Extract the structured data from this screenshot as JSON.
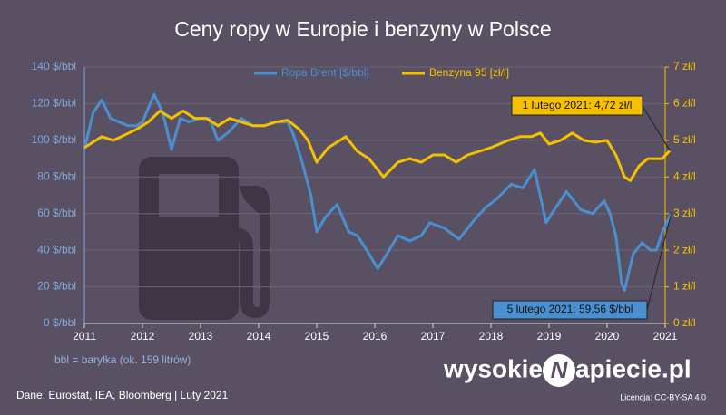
{
  "chart_data": {
    "type": "line",
    "title": "Ceny ropy w Europie i benzyny w Polsce",
    "series": [
      {
        "name": "Ropa Brent [$/bbl]",
        "color": "#4a90d0",
        "axis": "y",
        "x": [
          2011.0,
          2011.15,
          2011.3,
          2011.45,
          2011.6,
          2011.75,
          2011.9,
          2012.0,
          2012.2,
          2012.35,
          2012.5,
          2012.65,
          2012.8,
          2013.0,
          2013.15,
          2013.3,
          2013.5,
          2013.7,
          2013.9,
          2014.1,
          2014.3,
          2014.5,
          2014.6,
          2014.75,
          2014.9,
          2015.0,
          2015.15,
          2015.35,
          2015.55,
          2015.7,
          2015.9,
          2016.05,
          2016.15,
          2016.4,
          2016.6,
          2016.8,
          2016.95,
          2017.2,
          2017.45,
          2017.7,
          2017.9,
          2018.1,
          2018.35,
          2018.55,
          2018.75,
          2018.95,
          2019.05,
          2019.3,
          2019.55,
          2019.75,
          2019.95,
          2020.05,
          2020.15,
          2020.25,
          2020.3,
          2020.45,
          2020.6,
          2020.75,
          2020.85,
          2020.95,
          2021.1
        ],
        "values": [
          95,
          115,
          122,
          112,
          110,
          108,
          108,
          110,
          125,
          115,
          95,
          112,
          110,
          112,
          112,
          100,
          105,
          112,
          108,
          108,
          110,
          110,
          103,
          88,
          70,
          50,
          58,
          65,
          50,
          48,
          38,
          30,
          35,
          48,
          45,
          48,
          55,
          52,
          46,
          56,
          63,
          68,
          76,
          74,
          84,
          55,
          60,
          72,
          62,
          60,
          67,
          60,
          48,
          22,
          18,
          38,
          44,
          40,
          40,
          50,
          59.56
        ]
      },
      {
        "name": "Benzyna 95 [zł/l]",
        "color": "#f5c000",
        "axis": "y2",
        "x": [
          2011.0,
          2011.1,
          2011.3,
          2011.5,
          2011.7,
          2011.9,
          2012.1,
          2012.3,
          2012.5,
          2012.7,
          2012.9,
          2013.1,
          2013.3,
          2013.5,
          2013.7,
          2013.9,
          2014.1,
          2014.3,
          2014.5,
          2014.7,
          2014.85,
          2015.0,
          2015.2,
          2015.4,
          2015.5,
          2015.7,
          2015.9,
          2016.05,
          2016.15,
          2016.4,
          2016.6,
          2016.8,
          2017.0,
          2017.2,
          2017.4,
          2017.6,
          2017.8,
          2018.0,
          2018.3,
          2018.5,
          2018.7,
          2018.85,
          2019.0,
          2019.2,
          2019.4,
          2019.6,
          2019.8,
          2020.0,
          2020.15,
          2020.3,
          2020.4,
          2020.55,
          2020.7,
          2020.85,
          2020.95,
          2021.08
        ],
        "values": [
          4.8,
          4.9,
          5.1,
          5.0,
          5.15,
          5.3,
          5.5,
          5.8,
          5.6,
          5.8,
          5.6,
          5.6,
          5.4,
          5.6,
          5.5,
          5.4,
          5.4,
          5.5,
          5.55,
          5.3,
          5.0,
          4.4,
          4.8,
          5.0,
          5.1,
          4.7,
          4.5,
          4.2,
          4.0,
          4.4,
          4.5,
          4.4,
          4.6,
          4.6,
          4.4,
          4.6,
          4.7,
          4.8,
          5.0,
          5.1,
          5.1,
          5.2,
          4.9,
          5.0,
          5.2,
          5.0,
          4.95,
          5.0,
          4.6,
          4.0,
          3.9,
          4.3,
          4.5,
          4.5,
          4.5,
          4.72
        ]
      }
    ],
    "xlim": [
      2011,
      2021
    ],
    "xticks": [
      2011,
      2012,
      2013,
      2014,
      2015,
      2016,
      2017,
      2018,
      2019,
      2020,
      2021
    ],
    "ylim": [
      0,
      140
    ],
    "yticks": [
      {
        "value": 0,
        "label": "0 $/bbl"
      },
      {
        "value": 20,
        "label": "20 $/bbl"
      },
      {
        "value": 40,
        "label": "40 $/bbl"
      },
      {
        "value": 60,
        "label": "60 $/bbl"
      },
      {
        "value": 80,
        "label": "80 $/bbl"
      },
      {
        "value": 100,
        "label": "100 $/bbl"
      },
      {
        "value": 120,
        "label": "120 $/bbl"
      },
      {
        "value": 140,
        "label": "140 $/bbl"
      }
    ],
    "y2lim": [
      0,
      7
    ],
    "y2ticks": [
      {
        "value": 0,
        "label": "0 zł/l"
      },
      {
        "value": 1,
        "label": "1 zł/l"
      },
      {
        "value": 2,
        "label": "2 zł/l"
      },
      {
        "value": 3,
        "label": "3 zł/l"
      },
      {
        "value": 4,
        "label": "4 zł/l"
      },
      {
        "value": 5,
        "label": "5 zł/l"
      },
      {
        "value": 6,
        "label": "6 zł/l"
      },
      {
        "value": 7,
        "label": "7 zł/l"
      }
    ],
    "grid": true,
    "annotations": [
      "1 lutego 2021: 4,72 zł/l",
      "5 lutego 2021: 59,56 $/bbl"
    ],
    "note": "bbl = baryłka (ok. 159 litrów)",
    "source": "Dane: Eurostat, IEA, Bloomberg  |  Luty 2021",
    "logo": [
      "wysokie",
      "N",
      "apiecie.pl"
    ],
    "license": "Licencja: CC-BY-SA 4.0"
  }
}
